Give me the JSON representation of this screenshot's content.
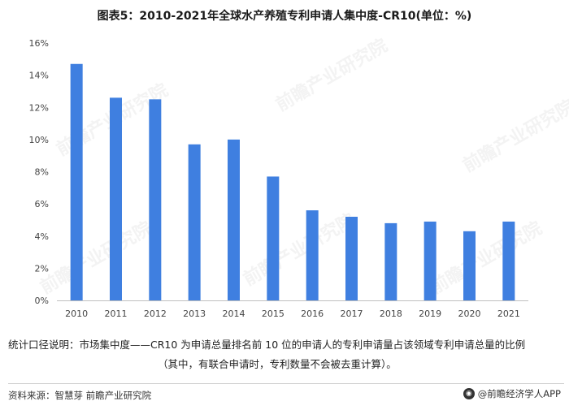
{
  "title": "图表5：2010-2021年全球水产养殖专利申请人集中度-CR10(单位：%)",
  "chart_data": {
    "type": "bar",
    "categories": [
      "2010",
      "2011",
      "2012",
      "2013",
      "2014",
      "2015",
      "2016",
      "2017",
      "2018",
      "2019",
      "2020",
      "2021"
    ],
    "values": [
      14.7,
      12.6,
      12.5,
      9.7,
      10.0,
      7.7,
      5.6,
      5.2,
      4.8,
      4.9,
      4.3,
      4.9
    ],
    "ylim": [
      0,
      16
    ],
    "yticks": [
      0,
      2,
      4,
      6,
      8,
      10,
      12,
      14,
      16
    ],
    "ytick_labels": [
      "0%",
      "2%",
      "4%",
      "6%",
      "8%",
      "10%",
      "12%",
      "14%",
      "16%"
    ],
    "grid": false,
    "bar_color": "#3f7fe0"
  },
  "note": {
    "line1": "统计口径说明：市场集中度——CR10 为申请总量排名前 10 位的申请人的专利申请量占该领域专利申请总量的比例",
    "line2": "（其中，有联合申请时，专利数量不会被去重计算）。"
  },
  "footer": {
    "source": "资料来源：智慧芽 前瞻产业研究院",
    "brand": "@前瞻经济学人APP"
  },
  "watermark": "前瞻产业研究院"
}
